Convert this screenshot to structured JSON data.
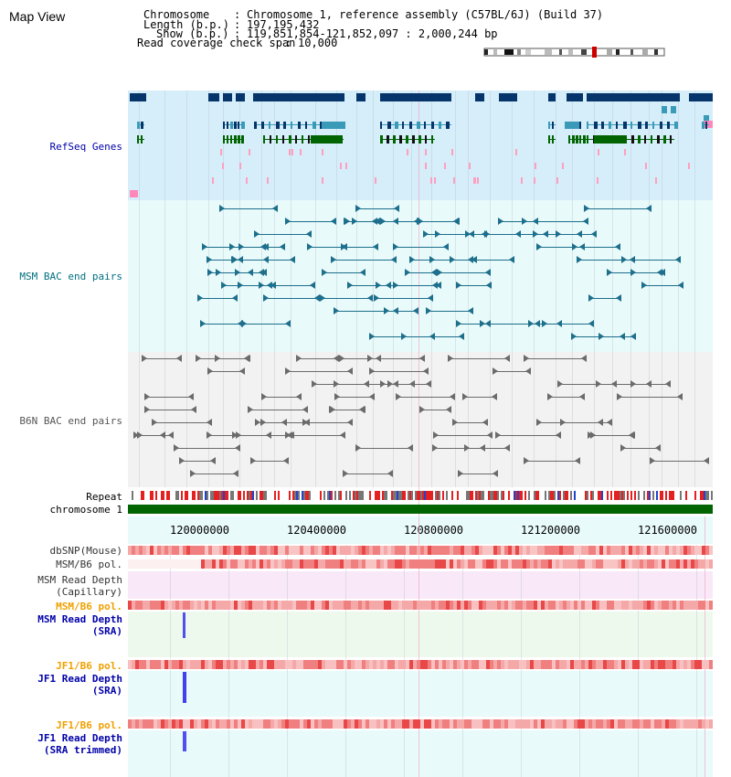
{
  "page_title": "Map View",
  "header": {
    "chromosome_key": "Chromosome",
    "chromosome_value": "Chromosome 1, reference assembly (C57BL/6J) (Build 37)",
    "length_key": "Length (b.p.)",
    "length_value": "197,195,432",
    "show_key": "Show (b.p.)",
    "show_value": "119,851,854-121,852,097 : 2,000,244 bp",
    "coverage_key": "Read coverage check span",
    "coverage_value": "10,000",
    "separator": ":"
  },
  "tracks": {
    "refseq": "RefSeq Genes",
    "msm_bac": "MSM BAC end pairs",
    "b6n_bac": "B6N BAC end pairs",
    "repeat": "Repeat",
    "chromosome": "chromosome 1"
  },
  "axis": {
    "ticks": [
      "120000000",
      "120400000",
      "120800000",
      "121200000",
      "121600000"
    ]
  },
  "lower_tracks": {
    "dbsnp": "dbSNP(Mouse)",
    "msm_b6_pol_1": "MSM/B6 pol.",
    "msm_read_depth_cap_1": "MSM Read Depth",
    "msm_read_depth_cap_2": "(Capillary)",
    "msm_b6_pol_2": "MSM/B6 pol.",
    "msm_read_depth_sra_1": "MSM Read Depth",
    "msm_read_depth_sra_2": "(SRA)",
    "jf1_b6_pol_1": "JF1/B6 pol.",
    "jf1_read_depth_sra_1": "JF1 Read Depth",
    "jf1_read_depth_sra_2": "(SRA)",
    "jf1_b6_pol_2": "JF1/B6 pol.",
    "jf1_read_depth_trim_1": "JF1 Read Depth",
    "jf1_read_depth_trim_2": "(SRA trimmed)"
  },
  "colors": {
    "refseq_bg": "#d6eefa",
    "msm_bg": "#e8fafa",
    "b6n_bg": "#f2f2f2",
    "gene_dark": "#06356b",
    "gene_teal": "#3a9bb8",
    "gene_green": "#006400",
    "bac_msm": "#1d6f8c",
    "bac_b6n": "#6b6b6b",
    "chrom_green": "#006400",
    "snp_pink": "#f4a0a0",
    "depth_blue": "#1a1aff",
    "depth_mid": "#6a6aff",
    "label_blue": "#0000aa",
    "label_teal": "#006f80",
    "label_orange": "#f0a000"
  }
}
